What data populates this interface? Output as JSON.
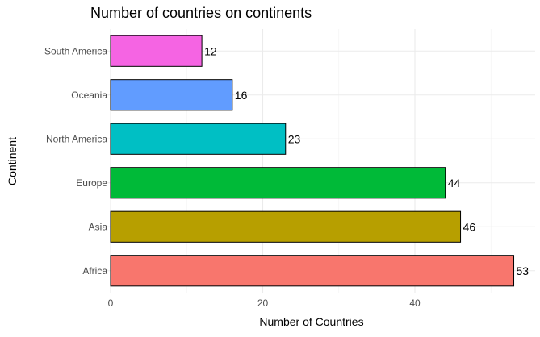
{
  "chart_data": {
    "type": "bar",
    "orientation": "horizontal",
    "title": "Number of countries on continents",
    "xlabel": "Number of Countries",
    "ylabel": "Continent",
    "categories": [
      "Africa",
      "Asia",
      "Europe",
      "North America",
      "Oceania",
      "South America"
    ],
    "values": [
      53,
      46,
      44,
      23,
      16,
      12
    ],
    "colors": [
      "#F8766D",
      "#B79F00",
      "#00BA38",
      "#00BFC4",
      "#619CFF",
      "#F564E3"
    ],
    "xlim": [
      0,
      55
    ],
    "xticks": [
      0,
      20,
      40
    ],
    "grid": true,
    "legend": "none"
  }
}
